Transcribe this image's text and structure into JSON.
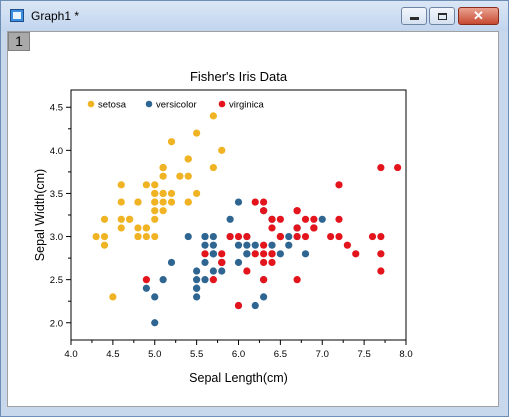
{
  "window": {
    "title": "Graph1 *",
    "layer_label": "1",
    "close_symbol": "✕"
  },
  "icons": {
    "app": "graph-window-icon",
    "minimize": "minimize-icon",
    "maximize": "maximize-icon",
    "close": "close-icon"
  },
  "chart_data": {
    "type": "scatter",
    "title": "Fisher's Iris Data",
    "xlabel": "Sepal Length(cm)",
    "ylabel": "Sepal Width(cm)",
    "xlim": [
      4.0,
      8.0
    ],
    "ylim": [
      1.8,
      4.7
    ],
    "xticks": [
      "4.0",
      "4.5",
      "5.0",
      "5.5",
      "6.0",
      "6.5",
      "7.0",
      "7.5",
      "8.0"
    ],
    "yticks": [
      "2.0",
      "2.5",
      "3.0",
      "3.5",
      "4.0",
      "4.5"
    ],
    "grid": false,
    "legend": "top-left",
    "series": [
      {
        "name": "setosa",
        "color": "#f0b323",
        "points": [
          [
            5.1,
            3.5
          ],
          [
            4.9,
            3.0
          ],
          [
            4.7,
            3.2
          ],
          [
            4.6,
            3.1
          ],
          [
            5.0,
            3.6
          ],
          [
            5.4,
            3.9
          ],
          [
            4.6,
            3.4
          ],
          [
            5.0,
            3.4
          ],
          [
            4.4,
            2.9
          ],
          [
            4.9,
            3.1
          ],
          [
            5.4,
            3.7
          ],
          [
            4.8,
            3.4
          ],
          [
            4.8,
            3.0
          ],
          [
            4.3,
            3.0
          ],
          [
            5.8,
            4.0
          ],
          [
            5.7,
            4.4
          ],
          [
            5.4,
            3.9
          ],
          [
            5.1,
            3.5
          ],
          [
            5.7,
            3.8
          ],
          [
            5.1,
            3.8
          ],
          [
            5.4,
            3.4
          ],
          [
            5.1,
            3.7
          ],
          [
            4.6,
            3.6
          ],
          [
            5.1,
            3.3
          ],
          [
            4.8,
            3.4
          ],
          [
            5.0,
            3.0
          ],
          [
            5.0,
            3.4
          ],
          [
            5.2,
            3.5
          ],
          [
            5.2,
            3.4
          ],
          [
            4.7,
            3.2
          ],
          [
            4.8,
            3.1
          ],
          [
            5.4,
            3.4
          ],
          [
            5.2,
            4.1
          ],
          [
            5.5,
            4.2
          ],
          [
            4.9,
            3.1
          ],
          [
            5.0,
            3.2
          ],
          [
            5.5,
            3.5
          ],
          [
            4.9,
            3.6
          ],
          [
            4.4,
            3.0
          ],
          [
            5.1,
            3.4
          ],
          [
            5.0,
            3.5
          ],
          [
            4.5,
            2.3
          ],
          [
            4.4,
            3.2
          ],
          [
            5.0,
            3.5
          ],
          [
            5.1,
            3.8
          ],
          [
            4.8,
            3.0
          ],
          [
            5.1,
            3.8
          ],
          [
            4.6,
            3.2
          ],
          [
            5.3,
            3.7
          ],
          [
            5.0,
            3.3
          ]
        ]
      },
      {
        "name": "versicolor",
        "color": "#2e6591",
        "points": [
          [
            7.0,
            3.2
          ],
          [
            6.4,
            3.2
          ],
          [
            6.9,
            3.1
          ],
          [
            5.5,
            2.3
          ],
          [
            6.5,
            2.8
          ],
          [
            5.7,
            2.8
          ],
          [
            6.3,
            3.3
          ],
          [
            4.9,
            2.4
          ],
          [
            6.6,
            2.9
          ],
          [
            5.2,
            2.7
          ],
          [
            5.0,
            2.0
          ],
          [
            5.9,
            3.0
          ],
          [
            6.0,
            2.2
          ],
          [
            6.1,
            2.9
          ],
          [
            5.6,
            2.9
          ],
          [
            6.7,
            3.1
          ],
          [
            5.6,
            3.0
          ],
          [
            5.8,
            2.7
          ],
          [
            6.2,
            2.2
          ],
          [
            5.6,
            2.5
          ],
          [
            5.9,
            3.2
          ],
          [
            6.1,
            2.8
          ],
          [
            6.3,
            2.5
          ],
          [
            6.1,
            2.8
          ],
          [
            6.4,
            2.9
          ],
          [
            6.6,
            3.0
          ],
          [
            6.8,
            2.8
          ],
          [
            6.7,
            3.0
          ],
          [
            6.0,
            2.9
          ],
          [
            5.7,
            2.6
          ],
          [
            5.5,
            2.4
          ],
          [
            5.5,
            2.4
          ],
          [
            5.8,
            2.7
          ],
          [
            6.0,
            2.7
          ],
          [
            5.4,
            3.0
          ],
          [
            6.0,
            3.4
          ],
          [
            6.7,
            3.1
          ],
          [
            6.3,
            2.3
          ],
          [
            5.6,
            3.0
          ],
          [
            5.5,
            2.5
          ],
          [
            5.5,
            2.6
          ],
          [
            6.1,
            3.0
          ],
          [
            5.8,
            2.6
          ],
          [
            5.0,
            2.3
          ],
          [
            5.6,
            2.7
          ],
          [
            5.7,
            3.0
          ],
          [
            5.7,
            2.9
          ],
          [
            6.2,
            2.9
          ],
          [
            5.1,
            2.5
          ],
          [
            5.7,
            2.8
          ]
        ]
      },
      {
        "name": "virginica",
        "color": "#e3141c",
        "points": [
          [
            6.3,
            3.3
          ],
          [
            5.8,
            2.7
          ],
          [
            7.1,
            3.0
          ],
          [
            6.3,
            2.9
          ],
          [
            6.5,
            3.0
          ],
          [
            7.6,
            3.0
          ],
          [
            4.9,
            2.5
          ],
          [
            7.3,
            2.9
          ],
          [
            6.7,
            2.5
          ],
          [
            7.2,
            3.6
          ],
          [
            6.5,
            3.2
          ],
          [
            6.4,
            2.7
          ],
          [
            6.8,
            3.0
          ],
          [
            5.7,
            2.5
          ],
          [
            5.8,
            2.8
          ],
          [
            6.4,
            3.2
          ],
          [
            6.5,
            3.0
          ],
          [
            7.7,
            3.8
          ],
          [
            7.7,
            2.6
          ],
          [
            6.0,
            2.2
          ],
          [
            6.9,
            3.2
          ],
          [
            5.6,
            2.8
          ],
          [
            7.7,
            2.8
          ],
          [
            6.3,
            2.7
          ],
          [
            6.7,
            3.3
          ],
          [
            7.2,
            3.2
          ],
          [
            6.2,
            2.8
          ],
          [
            6.1,
            3.0
          ],
          [
            6.4,
            2.8
          ],
          [
            7.2,
            3.0
          ],
          [
            7.4,
            2.8
          ],
          [
            7.9,
            3.8
          ],
          [
            6.4,
            2.8
          ],
          [
            6.3,
            2.8
          ],
          [
            6.1,
            2.6
          ],
          [
            7.7,
            3.0
          ],
          [
            6.3,
            3.4
          ],
          [
            6.4,
            3.1
          ],
          [
            6.0,
            3.0
          ],
          [
            6.9,
            3.1
          ],
          [
            6.7,
            3.1
          ],
          [
            6.9,
            3.1
          ],
          [
            5.8,
            2.7
          ],
          [
            6.8,
            3.2
          ],
          [
            6.7,
            3.3
          ],
          [
            6.7,
            3.0
          ],
          [
            6.3,
            2.5
          ],
          [
            6.5,
            3.0
          ],
          [
            6.2,
            3.4
          ],
          [
            5.9,
            3.0
          ]
        ]
      }
    ]
  }
}
